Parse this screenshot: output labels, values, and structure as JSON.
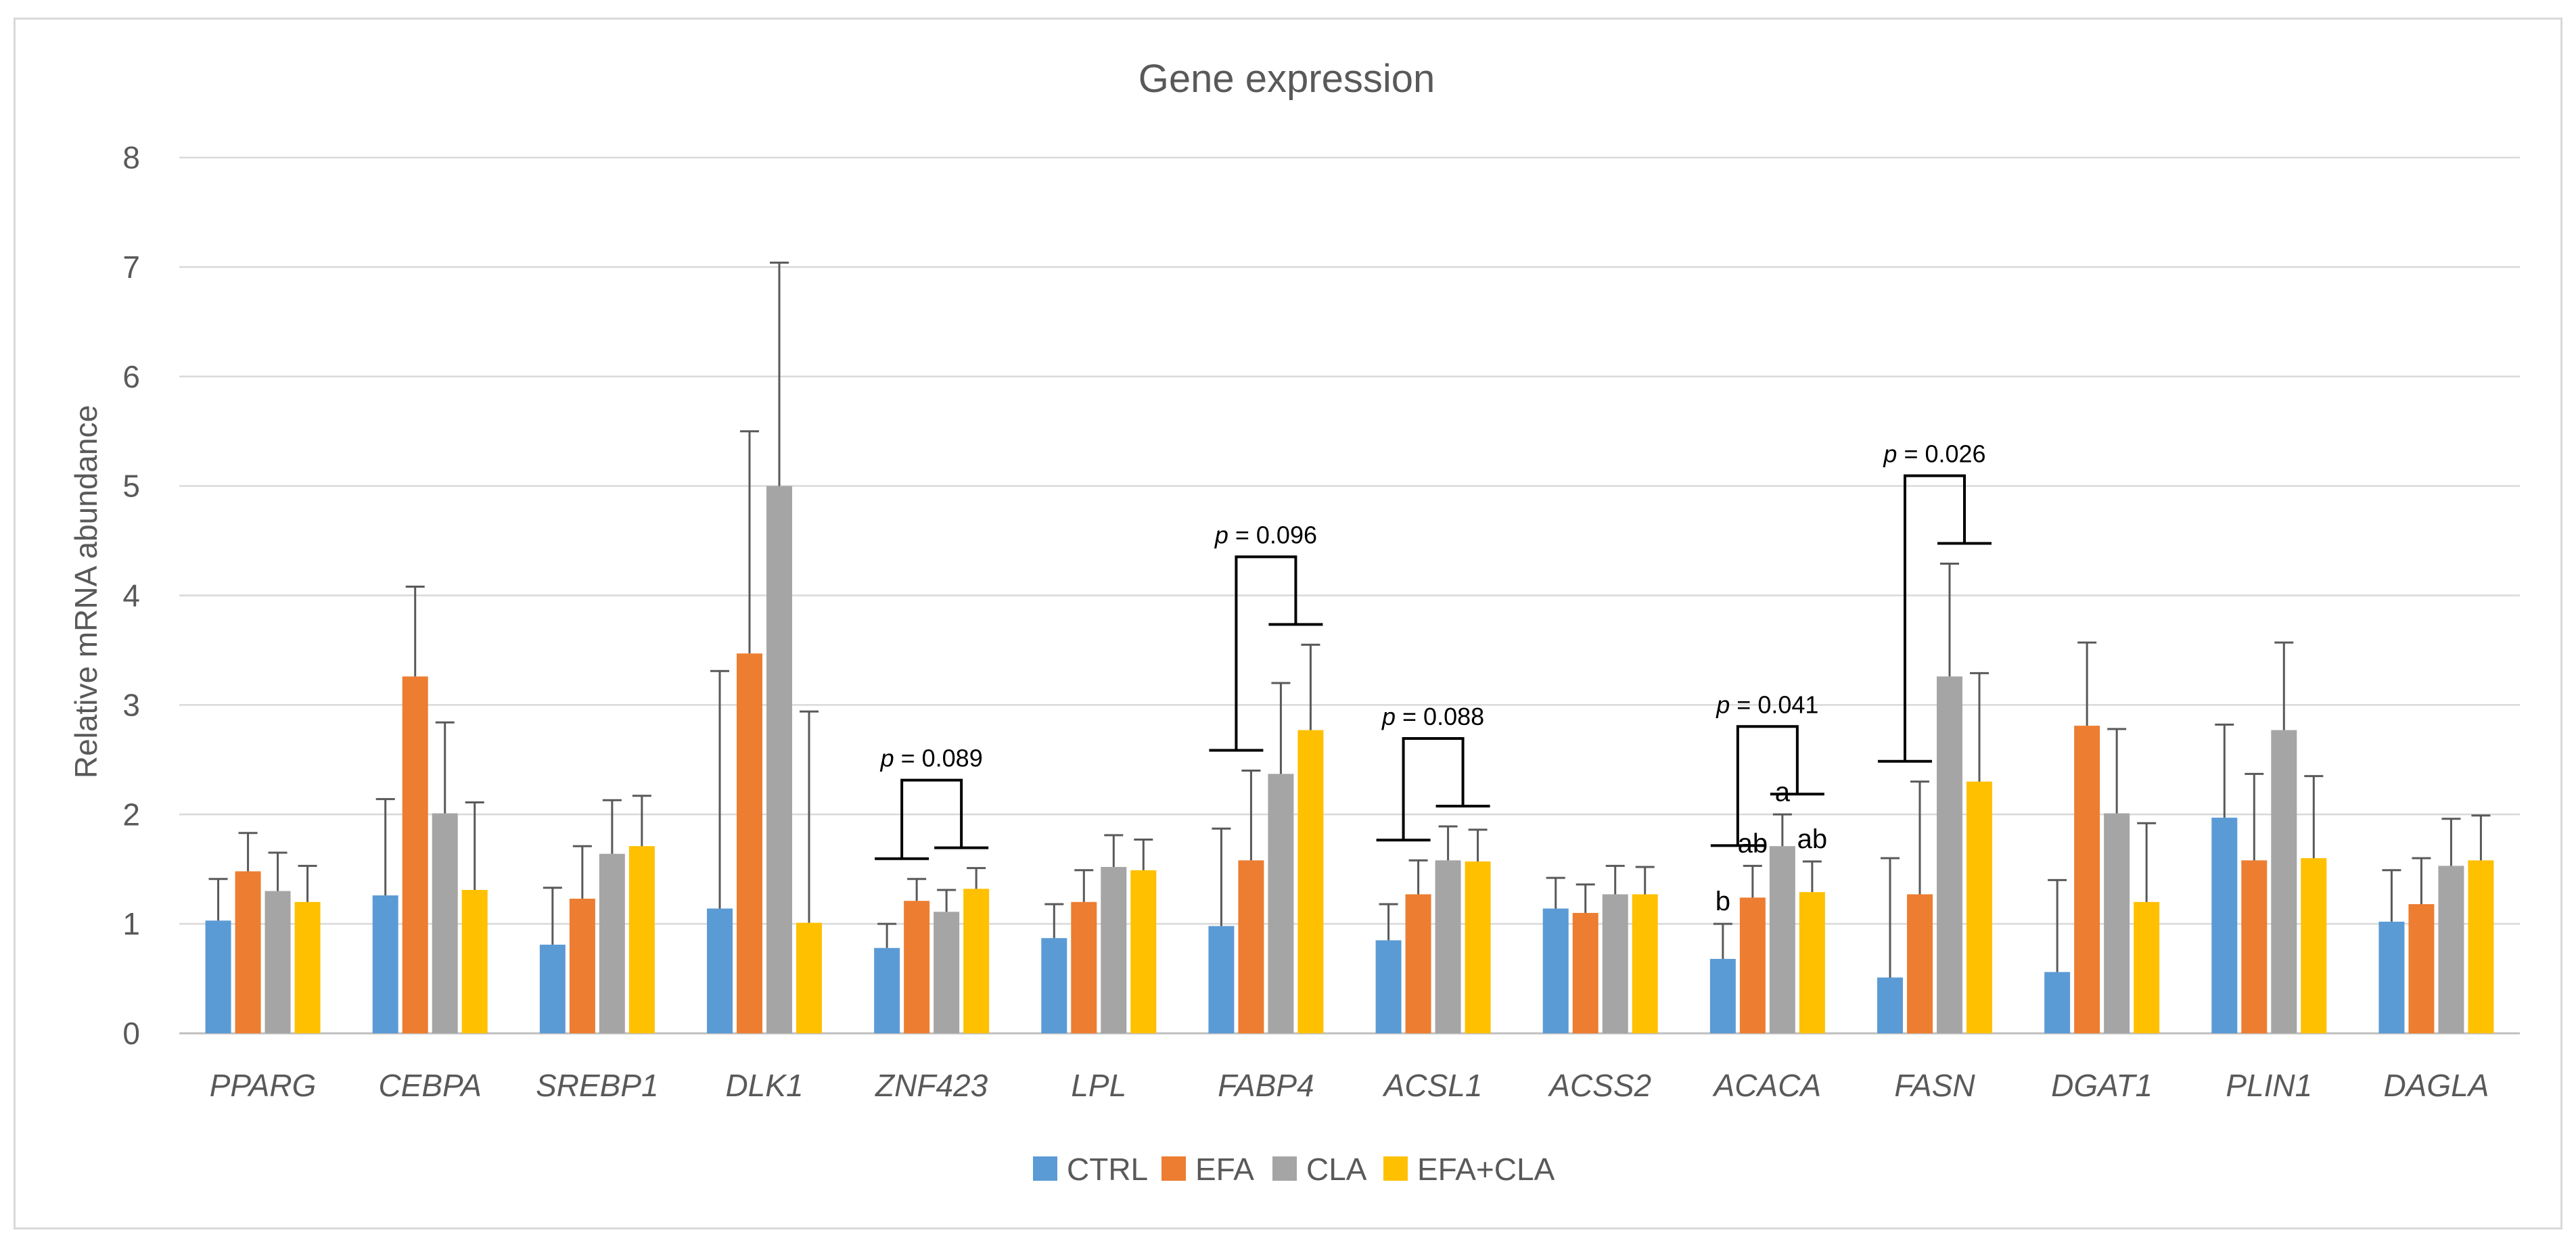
{
  "chart_data": {
    "type": "bar",
    "title": "Gene expression",
    "xlabel": "",
    "ylabel": "Relative mRNA abundance",
    "ylim": [
      0,
      8
    ],
    "yticks": [
      "0",
      "1",
      "2",
      "3",
      "4",
      "5",
      "6",
      "7",
      "8"
    ],
    "grid": true,
    "legend_position": "bottom",
    "categories": [
      "PPARG",
      "CEBPA",
      "SREBP1",
      "DLK1",
      "ZNF423",
      "LPL",
      "FABP4",
      "ACSL1",
      "ACSS2",
      "ACACA",
      "FASN",
      "DGAT1",
      "PLIN1",
      "DAGLA"
    ],
    "series": [
      {
        "name": "CTRL",
        "color": "#5b9bd5",
        "values": [
          1.03,
          1.26,
          0.81,
          1.14,
          0.78,
          0.87,
          0.98,
          0.85,
          1.14,
          0.68,
          0.51,
          0.56,
          1.97,
          1.02
        ],
        "errors": [
          0.38,
          0.88,
          0.52,
          2.17,
          0.22,
          0.31,
          0.89,
          0.33,
          0.28,
          0.32,
          1.09,
          0.84,
          0.85,
          0.47
        ]
      },
      {
        "name": "EFA",
        "color": "#ed7d31",
        "values": [
          1.48,
          3.26,
          1.23,
          3.47,
          1.21,
          1.2,
          1.58,
          1.27,
          1.1,
          1.24,
          1.27,
          2.81,
          1.58,
          1.18
        ],
        "errors": [
          0.35,
          0.82,
          0.48,
          2.03,
          0.2,
          0.29,
          0.82,
          0.31,
          0.26,
          0.29,
          1.03,
          0.76,
          0.79,
          0.42
        ]
      },
      {
        "name": "CLA",
        "color": "#a5a5a5",
        "values": [
          1.3,
          2.01,
          1.64,
          5.0,
          1.11,
          1.52,
          2.37,
          1.58,
          1.27,
          1.71,
          3.26,
          2.01,
          2.77,
          1.53
        ],
        "errors": [
          0.35,
          0.83,
          0.49,
          2.04,
          0.2,
          0.29,
          0.83,
          0.31,
          0.26,
          0.29,
          1.03,
          0.77,
          0.8,
          0.43
        ]
      },
      {
        "name": "EFA+CLA",
        "color": "#ffc000",
        "values": [
          1.2,
          1.31,
          1.71,
          1.01,
          1.32,
          1.49,
          2.77,
          1.57,
          1.27,
          1.29,
          2.3,
          1.2,
          1.6,
          1.58
        ],
        "errors": [
          0.33,
          0.8,
          0.46,
          1.93,
          0.19,
          0.28,
          0.78,
          0.29,
          0.25,
          0.28,
          0.99,
          0.72,
          0.75,
          0.41
        ]
      }
    ],
    "annotations": [
      {
        "category": "ZNF423",
        "text": "p = 0.089",
        "p_label": "p",
        "rest": " = 0.089"
      },
      {
        "category": "FABP4",
        "text": "p = 0.096",
        "p_label": "p",
        "rest": " = 0.096"
      },
      {
        "category": "ACSL1",
        "text": "p = 0.088",
        "p_label": "p",
        "rest": " = 0.088"
      },
      {
        "category": "ACACA",
        "text": "p = 0.041",
        "p_label": "p",
        "rest": " = 0.041"
      },
      {
        "category": "FASN",
        "text": "p = 0.026",
        "p_label": "p",
        "rest": " = 0.026"
      }
    ],
    "significance_letters": {
      "category": "ACACA",
      "letters": [
        "b",
        "ab",
        "a",
        "ab"
      ]
    }
  }
}
